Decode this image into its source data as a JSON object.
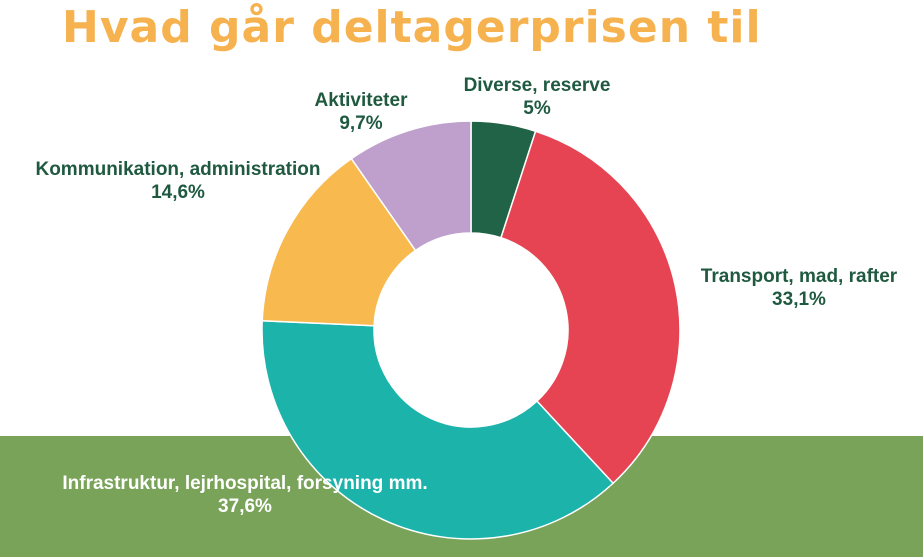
{
  "title": "Hvad går deltagerprisen til",
  "chart_data": {
    "type": "pie",
    "donut": true,
    "unit": "%",
    "slices": [
      {
        "label": "Diverse, reserve",
        "value": 5,
        "display": "5%",
        "color": "#216347"
      },
      {
        "label": "Transport, mad, rafter",
        "value": 33.1,
        "display": "33,1%",
        "color": "#e64452"
      },
      {
        "label": "Infrastruktur, lejrhospital, forsyning mm.",
        "value": 37.6,
        "display": "37,6%",
        "color": "#1cb3ab"
      },
      {
        "label": "Kommunikation, administration",
        "value": 14.6,
        "display": "14,6%",
        "color": "#f8b94f"
      },
      {
        "label": "Aktiviteter",
        "value": 9.7,
        "display": "9,7%",
        "color": "#bfa0cc"
      }
    ]
  }
}
